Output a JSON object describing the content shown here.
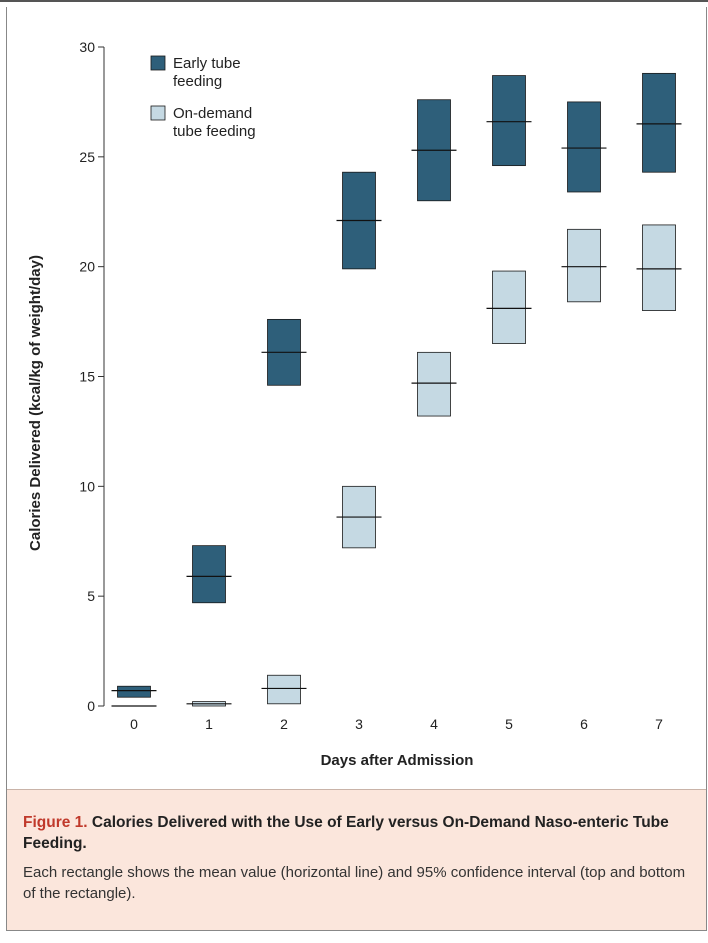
{
  "chart_data": {
    "type": "bar",
    "subtype": "floating-range",
    "xlabel": "Days after Admission",
    "ylabel": "Calories Delivered (kcal/kg of weight/day)",
    "categories": [
      "0",
      "1",
      "2",
      "3",
      "4",
      "5",
      "6",
      "7"
    ],
    "ylim": [
      0,
      30
    ],
    "yticks": [
      "0",
      "5",
      "10",
      "15",
      "20",
      "25",
      "30"
    ],
    "grid": false,
    "legend_position": "top-left",
    "series": [
      {
        "name": "Early tube feeding",
        "color": "#2e5f7a",
        "mean": [
          0.7,
          5.9,
          16.1,
          22.1,
          25.3,
          26.6,
          25.4,
          26.5
        ],
        "lower": [
          0.4,
          4.7,
          14.6,
          19.9,
          23.0,
          24.6,
          23.4,
          24.3
        ],
        "upper": [
          0.9,
          7.3,
          17.6,
          24.3,
          27.6,
          28.7,
          27.5,
          28.8
        ]
      },
      {
        "name": "On-demand tube feeding",
        "color": "#c5d9e3",
        "mean": [
          0.0,
          0.1,
          0.8,
          8.6,
          14.7,
          18.1,
          20.0,
          19.9
        ],
        "lower": [
          0.0,
          0.0,
          0.1,
          7.2,
          13.2,
          16.5,
          18.4,
          18.0
        ],
        "upper": [
          0.0,
          0.2,
          1.4,
          10.0,
          16.1,
          19.8,
          21.7,
          21.9
        ]
      }
    ],
    "legend_lines": [
      [
        "Early tube",
        "feeding"
      ],
      [
        "On-demand",
        "tube feeding"
      ]
    ]
  },
  "caption": {
    "label": "Figure 1.",
    "title": "Calories Delivered with the Use of Early versus On-Demand Naso-enteric Tube Feeding.",
    "body": "Each rectangle shows the mean value (horizontal line) and 95% confidence interval (top and bottom of the rectangle)."
  }
}
